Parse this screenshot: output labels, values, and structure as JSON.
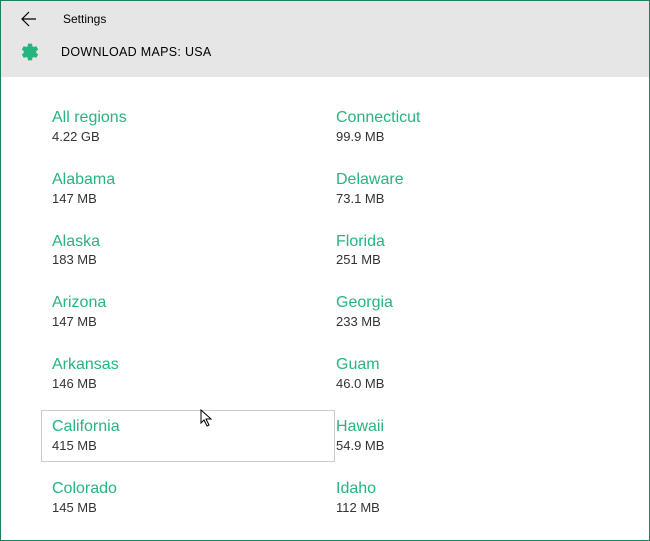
{
  "header": {
    "settings_label": "Settings",
    "page_title": "DOWNLOAD MAPS: USA"
  },
  "accent_color": "#26b47f",
  "columns": {
    "left": [
      {
        "name": "All regions",
        "size": "4.22 GB",
        "hovered": false
      },
      {
        "name": "Alabama",
        "size": "147 MB",
        "hovered": false
      },
      {
        "name": "Alaska",
        "size": "183 MB",
        "hovered": false
      },
      {
        "name": "Arizona",
        "size": "147 MB",
        "hovered": false
      },
      {
        "name": "Arkansas",
        "size": "146 MB",
        "hovered": false
      },
      {
        "name": "California",
        "size": "415 MB",
        "hovered": true
      },
      {
        "name": "Colorado",
        "size": "145 MB",
        "hovered": false
      }
    ],
    "right": [
      {
        "name": "Connecticut",
        "size": "99.9 MB",
        "hovered": false
      },
      {
        "name": "Delaware",
        "size": "73.1 MB",
        "hovered": false
      },
      {
        "name": "Florida",
        "size": "251 MB",
        "hovered": false
      },
      {
        "name": "Georgia",
        "size": "233 MB",
        "hovered": false
      },
      {
        "name": "Guam",
        "size": "46.0 MB",
        "hovered": false
      },
      {
        "name": "Hawaii",
        "size": "54.9 MB",
        "hovered": false
      },
      {
        "name": "Idaho",
        "size": "112 MB",
        "hovered": false
      }
    ]
  }
}
